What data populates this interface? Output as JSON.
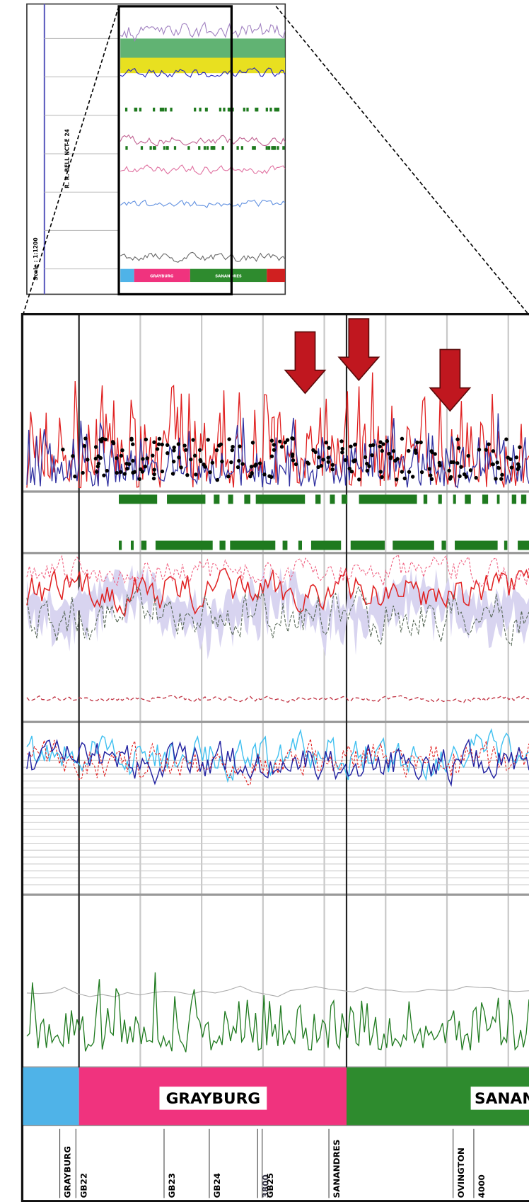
{
  "thumbnail": {
    "well_name": "R. R. BELL NCT-E 24",
    "scale": "Scale : 1:1200",
    "formations": [
      "GRAYBURG",
      "SANANDRES"
    ]
  },
  "formations": [
    "GRAYBURG",
    "SANANDRES"
  ],
  "depth_markers": [
    "GRAYBURG",
    "GB22",
    "GB23",
    "GB24",
    "3800",
    "GB25",
    "SANANDRES",
    "OVINGTON",
    "4000"
  ]
}
